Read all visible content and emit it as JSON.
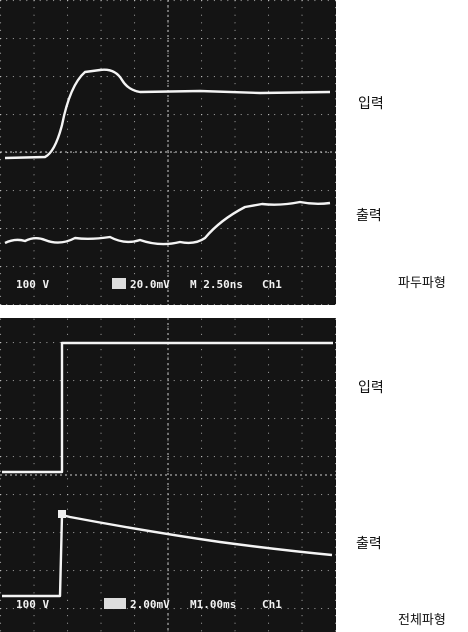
{
  "panels": [
    {
      "readout": {
        "volts": "100 V",
        "scale": "20.0mV",
        "time": "M 2.50ns",
        "channel": "Ch1"
      },
      "labels": {
        "input": "입력",
        "output": "출력"
      },
      "caption": "파두파형"
    },
    {
      "readout": {
        "volts": "100 V",
        "scale": "2.00mV",
        "time": "M1.00ms",
        "channel": "Ch1"
      },
      "labels": {
        "input": "입력",
        "output": "출력"
      },
      "caption": "전체파형"
    }
  ]
}
